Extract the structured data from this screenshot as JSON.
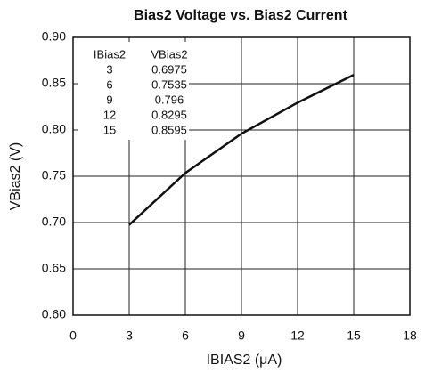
{
  "chart_data": {
    "type": "line",
    "title": "Bias2 Voltage vs. Bias2 Current",
    "x_label": "IBIAS2 (μA)",
    "y_label": "VBias2 (V)",
    "x": [
      3,
      6,
      9,
      12,
      15
    ],
    "series": [
      {
        "name": "VBias2",
        "color": "#111111",
        "values": [
          0.6975,
          0.7535,
          0.796,
          0.8295,
          0.8595
        ]
      }
    ],
    "table_headers": [
      "IBias2",
      "VBias2"
    ],
    "xlim": [
      0,
      18
    ],
    "xticks": [
      0,
      3,
      6,
      9,
      12,
      15,
      18
    ],
    "ylim": [
      0.6,
      0.9
    ],
    "yticks": [
      {
        "value": 0.6,
        "label": "0.60"
      },
      {
        "value": 0.65,
        "label": "0.65"
      },
      {
        "value": 0.7,
        "label": "0.70"
      },
      {
        "value": 0.75,
        "label": "0.75"
      },
      {
        "value": 0.8,
        "label": "0.80"
      },
      {
        "value": 0.85,
        "label": "0.85"
      },
      {
        "value": 0.9,
        "label": "0.90"
      }
    ],
    "grid": true
  }
}
